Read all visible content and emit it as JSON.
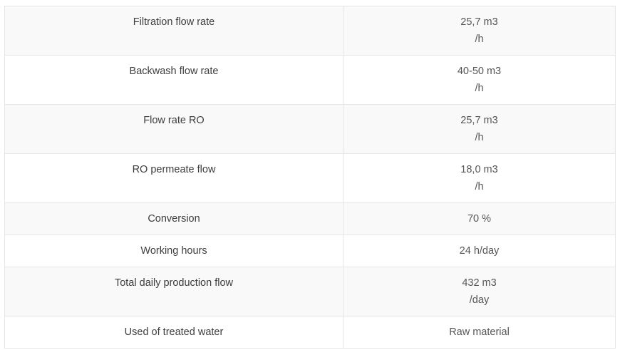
{
  "table": {
    "rows": [
      {
        "label": "Filtration flow rate",
        "value_line1": "25,7 m3",
        "value_line2": "/h"
      },
      {
        "label": "Backwash flow rate",
        "value_line1": "40-50 m3",
        "value_line2": "/h"
      },
      {
        "label": "Flow rate RO",
        "value_line1": "25,7 m3",
        "value_line2": "/h"
      },
      {
        "label": "RO permeate flow",
        "value_line1": "18,0 m3",
        "value_line2": "/h"
      },
      {
        "label": "Conversion",
        "value_line1": "70 %",
        "value_line2": ""
      },
      {
        "label": "Working hours",
        "value_line1": "24 h/day",
        "value_line2": ""
      },
      {
        "label": "Total daily production flow",
        "value_line1": "432 m3",
        "value_line2": "/day"
      },
      {
        "label": "Used of treated water",
        "value_line1": "Raw material",
        "value_line2": ""
      }
    ]
  }
}
